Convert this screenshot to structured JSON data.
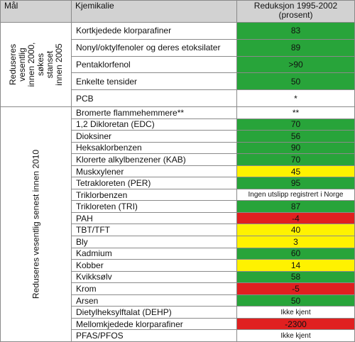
{
  "header": {
    "goal_label": "Mål",
    "chemical_label": "Kjemikalie",
    "reduction_label_line1": "Reduksjon 1995-2002",
    "reduction_label_line2": "(prosent)"
  },
  "groups": [
    {
      "goal_lines": [
        "Reduseres",
        "vesentlig",
        "innen 2000,",
        "søkes",
        "stanset",
        "innen 2005"
      ]
    },
    {
      "goal_lines": [
        "Reduseres vesentlig senest innen 2010"
      ]
    }
  ],
  "colors": {
    "green": "#28a43a",
    "yellow": "#fff200",
    "red": "#e02020",
    "white": "#ffffff",
    "header_grey": "#d2d2d2"
  },
  "rows": [
    {
      "chemical": "Kortkjedede klorparafiner",
      "reduction": "83",
      "status": "green"
    },
    {
      "chemical": "Nonyl/oktylfenoler og deres etoksilater",
      "reduction": "89",
      "status": "green"
    },
    {
      "chemical": "Pentaklorfenol",
      "reduction": ">90",
      "status": "green"
    },
    {
      "chemical": "Enkelte tensider",
      "reduction": "50",
      "status": "green"
    },
    {
      "chemical": "PCB",
      "reduction": "*",
      "status": "white"
    },
    {
      "chemical": "Bromerte flammehemmere**",
      "reduction": "**",
      "status": "white"
    },
    {
      "chemical": "1,2 Dikloretan (EDC)",
      "reduction": "70",
      "status": "green"
    },
    {
      "chemical": "Dioksiner",
      "reduction": "56",
      "status": "green"
    },
    {
      "chemical": "Heksaklorbenzen",
      "reduction": "90",
      "status": "green"
    },
    {
      "chemical": "Klorerte alkylbenzener (KAB)",
      "reduction": "70",
      "status": "green"
    },
    {
      "chemical": "Muskxylener",
      "reduction": "45",
      "status": "yellow"
    },
    {
      "chemical": "Tetrakloreten (PER)",
      "reduction": "95",
      "status": "green"
    },
    {
      "chemical": "Triklorbenzen",
      "reduction": "Ingen utslipp registrert i Norge",
      "status": "white"
    },
    {
      "chemical": "Trikloreten (TRI)",
      "reduction": "87",
      "status": "green"
    },
    {
      "chemical": "PAH",
      "reduction": "-4",
      "status": "red"
    },
    {
      "chemical": "TBT/TFT",
      "reduction": "40",
      "status": "yellow"
    },
    {
      "chemical": "Bly",
      "reduction": "3",
      "status": "yellow"
    },
    {
      "chemical": "Kadmium",
      "reduction": "60",
      "status": "green"
    },
    {
      "chemical": "Kobber",
      "reduction": "14",
      "status": "yellow"
    },
    {
      "chemical": "Kvikksølv",
      "reduction": "58",
      "status": "green"
    },
    {
      "chemical": "Krom",
      "reduction": "-5",
      "status": "red"
    },
    {
      "chemical": "Arsen",
      "reduction": "50",
      "status": "green"
    },
    {
      "chemical": "Dietylheksylftalat (DEHP)",
      "reduction": "Ikke kjent",
      "status": "white"
    },
    {
      "chemical": "Mellomkjedede klorparafiner",
      "reduction": "-2300",
      "status": "red"
    },
    {
      "chemical": "PFAS/PFOS",
      "reduction": "Ikke kjent",
      "status": "white"
    }
  ]
}
